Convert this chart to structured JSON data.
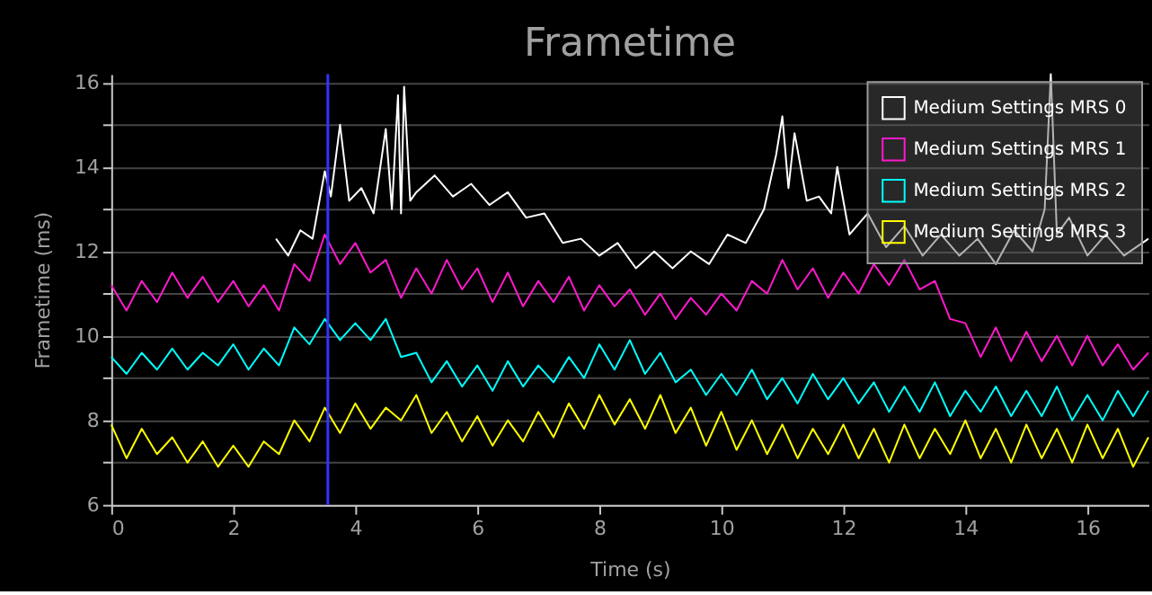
{
  "chart_data": {
    "type": "line",
    "title": "Frametime",
    "xlabel": "Time (s)",
    "ylabel": "Frametime (ms)",
    "x": [
      0,
      0.25,
      0.5,
      0.75,
      1,
      1.25,
      1.5,
      1.75,
      2,
      2.25,
      2.5,
      2.75,
      3,
      3.25,
      3.5,
      3.75,
      4,
      4.25,
      4.5,
      4.75,
      5,
      5.25,
      5.5,
      5.75,
      6,
      6.25,
      6.5,
      6.75,
      7,
      7.25,
      7.5,
      7.75,
      8,
      8.25,
      8.5,
      8.75,
      9,
      9.25,
      9.5,
      9.75,
      10,
      10.25,
      10.5,
      10.75,
      11,
      11.25,
      11.5,
      11.75,
      12,
      12.25,
      12.5,
      12.75,
      13,
      13.25,
      13.5,
      13.75,
      14,
      14.25,
      14.5,
      14.75,
      15,
      15.25,
      15.5,
      15.75,
      16,
      16.25,
      16.5,
      16.75,
      17
    ],
    "series": [
      {
        "name": "Medium Settings MRS 0",
        "color": "#ffffff",
        "x": [
          2.7,
          2.9,
          3.1,
          3.3,
          3.5,
          3.6,
          3.75,
          3.9,
          4.1,
          4.3,
          4.5,
          4.6,
          4.7,
          4.75,
          4.8,
          4.9,
          5.0,
          5.3,
          5.6,
          5.9,
          6.2,
          6.5,
          6.8,
          7.1,
          7.4,
          7.7,
          8.0,
          8.3,
          8.6,
          8.9,
          9.2,
          9.5,
          9.8,
          10.1,
          10.4,
          10.7,
          10.9,
          11.0,
          11.1,
          11.2,
          11.4,
          11.6,
          11.8,
          11.9,
          12.1,
          12.4,
          12.7,
          13.0,
          13.3,
          13.6,
          13.9,
          14.2,
          14.5,
          14.8,
          15.1,
          15.3,
          15.4,
          15.5,
          15.7,
          16.0,
          16.3,
          16.6,
          17.0
        ],
        "values": [
          12.3,
          11.9,
          12.5,
          12.3,
          13.9,
          13.3,
          15.0,
          13.2,
          13.5,
          12.9,
          14.9,
          13.0,
          15.7,
          12.9,
          15.9,
          13.2,
          13.4,
          13.8,
          13.3,
          13.6,
          13.1,
          13.4,
          12.8,
          12.9,
          12.2,
          12.3,
          11.9,
          12.2,
          11.6,
          12.0,
          11.6,
          12.0,
          11.7,
          12.4,
          12.2,
          13.0,
          14.3,
          15.2,
          13.5,
          14.8,
          13.2,
          13.3,
          12.9,
          14.0,
          12.4,
          12.9,
          12.1,
          12.6,
          11.9,
          12.4,
          11.9,
          12.3,
          11.7,
          12.5,
          12.0,
          13.0,
          16.2,
          12.4,
          12.8,
          11.9,
          12.4,
          11.9,
          12.3
        ]
      },
      {
        "name": "Medium Settings MRS 1",
        "color": "#ff19cc",
        "values": [
          11.2,
          10.6,
          11.3,
          10.8,
          11.5,
          10.9,
          11.4,
          10.8,
          11.3,
          10.7,
          11.2,
          10.6,
          11.7,
          11.3,
          12.4,
          11.7,
          12.2,
          11.5,
          11.8,
          10.9,
          11.6,
          11.0,
          11.8,
          11.1,
          11.6,
          10.8,
          11.5,
          10.7,
          11.3,
          10.8,
          11.4,
          10.6,
          11.2,
          10.7,
          11.1,
          10.5,
          11.0,
          10.4,
          10.9,
          10.5,
          11.0,
          10.6,
          11.3,
          11.0,
          11.8,
          11.1,
          11.6,
          10.9,
          11.5,
          11.0,
          11.7,
          11.2,
          11.8,
          11.1,
          11.3,
          10.4,
          10.3,
          9.5,
          10.2,
          9.4,
          10.1,
          9.4,
          10.0,
          9.3,
          10.0,
          9.3,
          9.8,
          9.2,
          9.6
        ]
      },
      {
        "name": "Medium Settings MRS 2",
        "color": "#00ffff",
        "values": [
          9.5,
          9.1,
          9.6,
          9.2,
          9.7,
          9.2,
          9.6,
          9.3,
          9.8,
          9.2,
          9.7,
          9.3,
          10.2,
          9.8,
          10.4,
          9.9,
          10.3,
          9.9,
          10.4,
          9.5,
          9.6,
          8.9,
          9.4,
          8.8,
          9.3,
          8.7,
          9.4,
          8.8,
          9.3,
          8.9,
          9.5,
          9.0,
          9.8,
          9.2,
          9.9,
          9.1,
          9.6,
          8.9,
          9.2,
          8.6,
          9.1,
          8.6,
          9.2,
          8.5,
          9.0,
          8.4,
          9.1,
          8.5,
          9.0,
          8.4,
          8.9,
          8.2,
          8.8,
          8.2,
          8.9,
          8.1,
          8.7,
          8.2,
          8.8,
          8.1,
          8.7,
          8.1,
          8.8,
          8.0,
          8.6,
          8.0,
          8.7,
          8.1,
          8.7
        ]
      },
      {
        "name": "Medium Settings MRS 3",
        "color": "#ffff00",
        "values": [
          7.9,
          7.1,
          7.8,
          7.2,
          7.6,
          7.0,
          7.5,
          6.9,
          7.4,
          6.9,
          7.5,
          7.2,
          8.0,
          7.5,
          8.3,
          7.7,
          8.4,
          7.8,
          8.3,
          8.0,
          8.6,
          7.7,
          8.2,
          7.5,
          8.1,
          7.4,
          8.0,
          7.5,
          8.2,
          7.6,
          8.4,
          7.8,
          8.6,
          7.9,
          8.5,
          7.8,
          8.6,
          7.7,
          8.3,
          7.4,
          8.2,
          7.3,
          8.0,
          7.2,
          7.9,
          7.1,
          7.8,
          7.2,
          7.9,
          7.1,
          7.8,
          7.0,
          7.9,
          7.1,
          7.8,
          7.2,
          8.0,
          7.1,
          7.8,
          7.0,
          7.9,
          7.1,
          7.8,
          7.0,
          7.9,
          7.1,
          7.8,
          6.9,
          7.6
        ]
      }
    ],
    "xlim": [
      0,
      17
    ],
    "xticks": [
      0,
      2,
      4,
      6,
      8,
      10,
      12,
      14,
      16
    ],
    "ylim": [
      6,
      16.2
    ],
    "yticks": [
      6,
      {
        "value": 7,
        "label": null
      },
      8,
      {
        "value": 9,
        "label": null
      },
      10,
      {
        "value": 11,
        "label": null
      },
      12,
      {
        "value": 13,
        "label": null
      },
      14,
      {
        "value": 15,
        "label": null
      },
      16
    ],
    "ref_lines": [
      {
        "axis": "x",
        "value": 3.55,
        "color": "#3333ff"
      }
    ],
    "grid": "y",
    "legend": "top right",
    "line_style": "solid"
  }
}
